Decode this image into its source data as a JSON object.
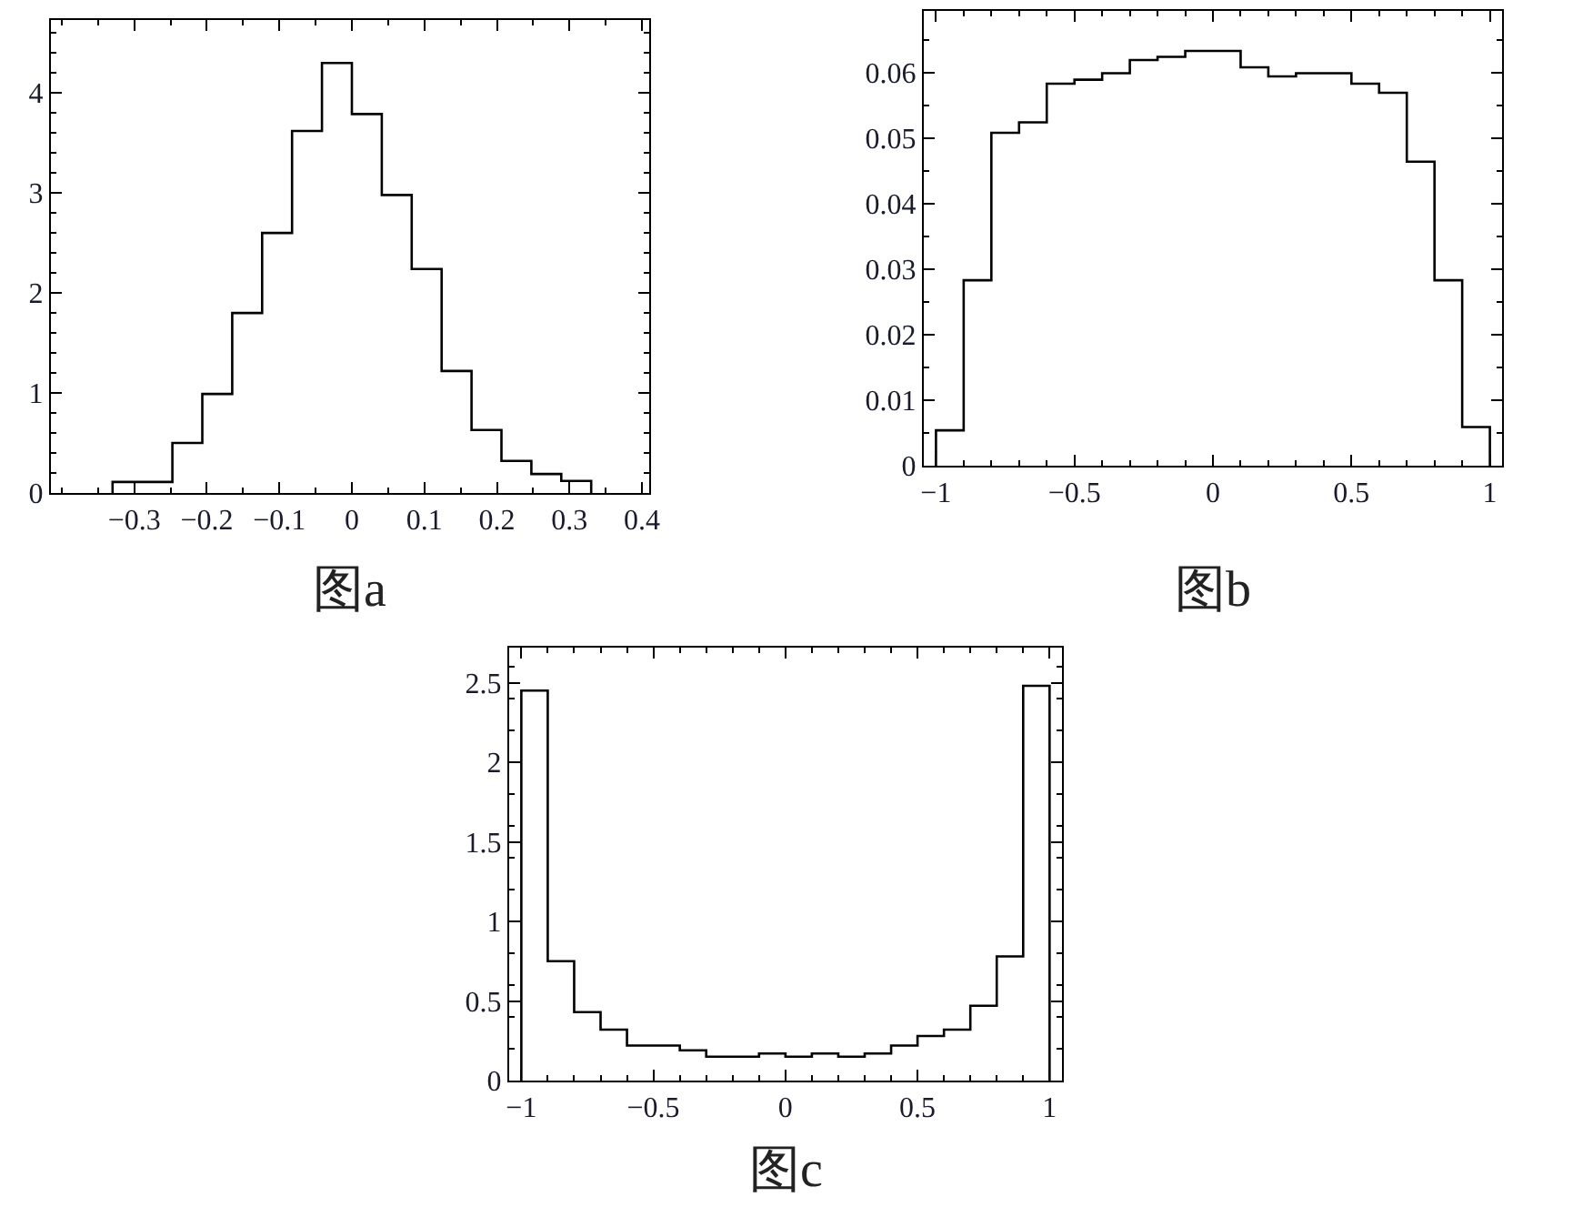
{
  "chart_data": [
    {
      "type": "histogram",
      "annotations": [
        "图a"
      ],
      "color": "#000000",
      "bins": [
        -0.33,
        -0.28875,
        -0.2475,
        -0.20625,
        -0.165,
        -0.12375,
        -0.0825,
        -0.04125,
        0,
        0.04125,
        0.0825,
        0.12375,
        0.165,
        0.20625,
        0.2475,
        0.28875,
        0.33
      ],
      "values": [
        0.11,
        0.11,
        0.5,
        0.99,
        1.8,
        2.6,
        3.62,
        4.3,
        3.79,
        2.98,
        2.24,
        1.22,
        0.63,
        0.32,
        0.19,
        0.12
      ],
      "xlim": [
        -0.415,
        0.41
      ],
      "ylim": [
        0,
        4.73
      ],
      "xticks": [
        -0.3,
        -0.2,
        -0.1,
        0,
        0.1,
        0.2,
        0.3,
        0.4
      ],
      "yticks": [
        0,
        1,
        2,
        3,
        4
      ],
      "grid": false
    },
    {
      "type": "histogram",
      "annotations": [
        "图b"
      ],
      "color": "#000000",
      "bins": [
        -1,
        -0.9,
        -0.8,
        -0.7,
        -0.6,
        -0.5,
        -0.4,
        -0.3,
        -0.2,
        -0.1,
        0,
        0.1,
        0.2,
        0.3,
        0.4,
        0.5,
        0.6,
        0.7,
        0.8,
        0.9,
        1
      ],
      "values": [
        0.0054,
        0.0283,
        0.0508,
        0.0524,
        0.0583,
        0.0589,
        0.0599,
        0.0619,
        0.0624,
        0.0633,
        0.0633,
        0.0608,
        0.0594,
        0.0599,
        0.0599,
        0.0583,
        0.0569,
        0.0464,
        0.0283,
        0.0059
      ],
      "xlim": [
        -1.044,
        1.044
      ],
      "ylim": [
        0,
        0.0694
      ],
      "xticks": [
        -1,
        -0.5,
        0,
        0.5,
        1
      ],
      "yticks": [
        0,
        0.01,
        0.02,
        0.03,
        0.04,
        0.05,
        0.06
      ],
      "grid": false
    },
    {
      "type": "histogram",
      "annotations": [
        "图c"
      ],
      "color": "#000000",
      "bins": [
        -1,
        -0.9,
        -0.8,
        -0.7,
        -0.6,
        -0.5,
        -0.4,
        -0.3,
        -0.2,
        -0.1,
        0,
        0.1,
        0.2,
        0.3,
        0.4,
        0.5,
        0.6,
        0.7,
        0.8,
        0.9,
        1
      ],
      "values": [
        2.45,
        0.75,
        0.43,
        0.32,
        0.22,
        0.22,
        0.19,
        0.15,
        0.15,
        0.17,
        0.15,
        0.17,
        0.15,
        0.17,
        0.22,
        0.28,
        0.32,
        0.47,
        0.78,
        2.48
      ],
      "xlim": [
        -1.046,
        1.047
      ],
      "ylim": [
        0,
        2.72
      ],
      "xticks": [
        -1,
        -0.5,
        0,
        0.5,
        1
      ],
      "yticks": [
        0,
        0.5,
        1,
        1.5,
        2,
        2.5
      ],
      "grid": false
    }
  ]
}
